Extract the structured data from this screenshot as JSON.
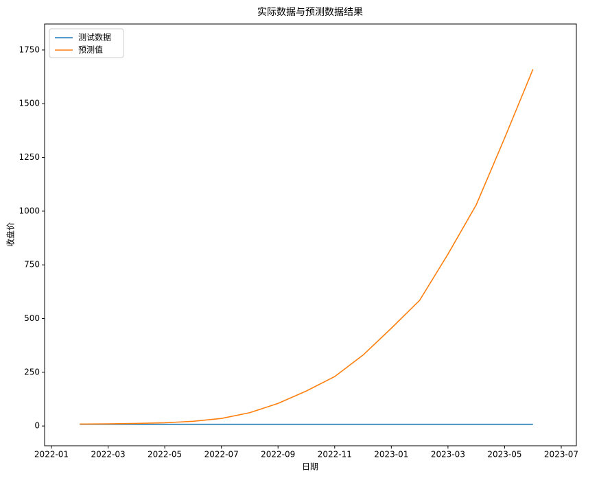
{
  "chart_data": {
    "type": "line",
    "title": "实际数据与预测数据结果",
    "x_label": "日期",
    "y_label": "收盘价",
    "x": [
      "2022-02",
      "2022-03",
      "2022-04",
      "2022-05",
      "2022-06",
      "2022-07",
      "2022-08",
      "2022-09",
      "2022-10",
      "2022-11",
      "2022-12",
      "2023-01",
      "2023-02",
      "2023-03",
      "2023-04",
      "2023-05",
      "2023-06"
    ],
    "series": [
      {
        "name": "测试数据",
        "color": "#1f77b4",
        "values": [
          8,
          8,
          8,
          8,
          8,
          8,
          8,
          8,
          8,
          8,
          8,
          8,
          8,
          8,
          8,
          8,
          8
        ]
      },
      {
        "name": "预测值",
        "color": "#ff7f0e",
        "values": [
          9,
          10,
          12,
          15,
          22,
          35,
          62,
          105,
          163,
          230,
          330,
          455,
          585,
          800,
          1030,
          1340,
          1660
        ]
      }
    ],
    "xlim": [
      "2022-01",
      "2023-07"
    ],
    "xticks": [
      "2022-01",
      "2022-03",
      "2022-05",
      "2022-07",
      "2022-09",
      "2022-11",
      "2023-01",
      "2023-03",
      "2023-05",
      "2023-07"
    ],
    "ylim": [
      -92,
      1871
    ],
    "yticks": [
      0,
      250,
      500,
      750,
      1000,
      1250,
      1500,
      1750
    ],
    "legend": "upper left",
    "grid": false
  }
}
